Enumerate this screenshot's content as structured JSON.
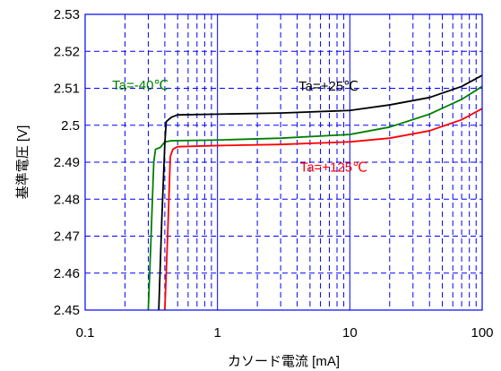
{
  "chart_data": {
    "type": "line",
    "title": "",
    "xlabel": "カソード電流 [mA]",
    "ylabel": "基準電圧 [V]",
    "x_scale": "log",
    "xlim": [
      0.1,
      100
    ],
    "ylim": [
      2.45,
      2.53
    ],
    "x_ticks": [
      {
        "value": 0.1,
        "label": "0.1"
      },
      {
        "value": 1,
        "label": "1"
      },
      {
        "value": 10,
        "label": "10"
      },
      {
        "value": 100,
        "label": "100"
      }
    ],
    "y_ticks": [
      {
        "value": 2.45,
        "label": "2.45"
      },
      {
        "value": 2.46,
        "label": "2.46"
      },
      {
        "value": 2.47,
        "label": "2.47"
      },
      {
        "value": 2.48,
        "label": "2.48"
      },
      {
        "value": 2.49,
        "label": "2.49"
      },
      {
        "value": 2.5,
        "label": "2.5"
      },
      {
        "value": 2.51,
        "label": "2.51"
      },
      {
        "value": 2.52,
        "label": "2.52"
      },
      {
        "value": 2.53,
        "label": "2.53"
      }
    ],
    "grid": true,
    "grid_color": "#0000ff",
    "series": [
      {
        "name": "Ta=-40℃",
        "color": "#008000",
        "points": [
          [
            0.3,
            2.45
          ],
          [
            0.315,
            2.47
          ],
          [
            0.33,
            2.49
          ],
          [
            0.34,
            2.4935
          ],
          [
            0.37,
            2.494
          ],
          [
            0.4,
            2.4955
          ],
          [
            0.45,
            2.4958
          ],
          [
            1,
            2.496
          ],
          [
            3,
            2.4965
          ],
          [
            10,
            2.4975
          ],
          [
            20,
            2.4995
          ],
          [
            40,
            2.503
          ],
          [
            70,
            2.507
          ],
          [
            100,
            2.5105
          ]
        ]
      },
      {
        "name": "Ta=+25℃",
        "color": "#000000",
        "points": [
          [
            0.36,
            2.45
          ],
          [
            0.38,
            2.475
          ],
          [
            0.4,
            2.495
          ],
          [
            0.41,
            2.501
          ],
          [
            0.45,
            2.5022
          ],
          [
            0.5,
            2.5028
          ],
          [
            1,
            2.503
          ],
          [
            3,
            2.5033
          ],
          [
            10,
            2.504
          ],
          [
            20,
            2.5055
          ],
          [
            40,
            2.5075
          ],
          [
            70,
            2.5105
          ],
          [
            100,
            2.5135
          ]
        ]
      },
      {
        "name": "Ta=+125℃",
        "color": "#ff0000",
        "points": [
          [
            0.4,
            2.45
          ],
          [
            0.42,
            2.47
          ],
          [
            0.44,
            2.4915
          ],
          [
            0.46,
            2.4935
          ],
          [
            0.5,
            2.4942
          ],
          [
            1,
            2.4945
          ],
          [
            3,
            2.4948
          ],
          [
            10,
            2.4955
          ],
          [
            20,
            2.4965
          ],
          [
            40,
            2.4985
          ],
          [
            70,
            2.5015
          ],
          [
            100,
            2.5045
          ]
        ]
      }
    ],
    "annotations": [
      {
        "text": "Ta=-40℃",
        "color": "#008000",
        "x": 0.16,
        "y": 2.5096
      },
      {
        "text": "Ta=+25℃",
        "color": "#000000",
        "x": 4.1,
        "y": 2.5094
      },
      {
        "text": "Ta=+125℃",
        "color": "#ff0000",
        "x": 4.2,
        "y": 2.4874
      }
    ]
  }
}
